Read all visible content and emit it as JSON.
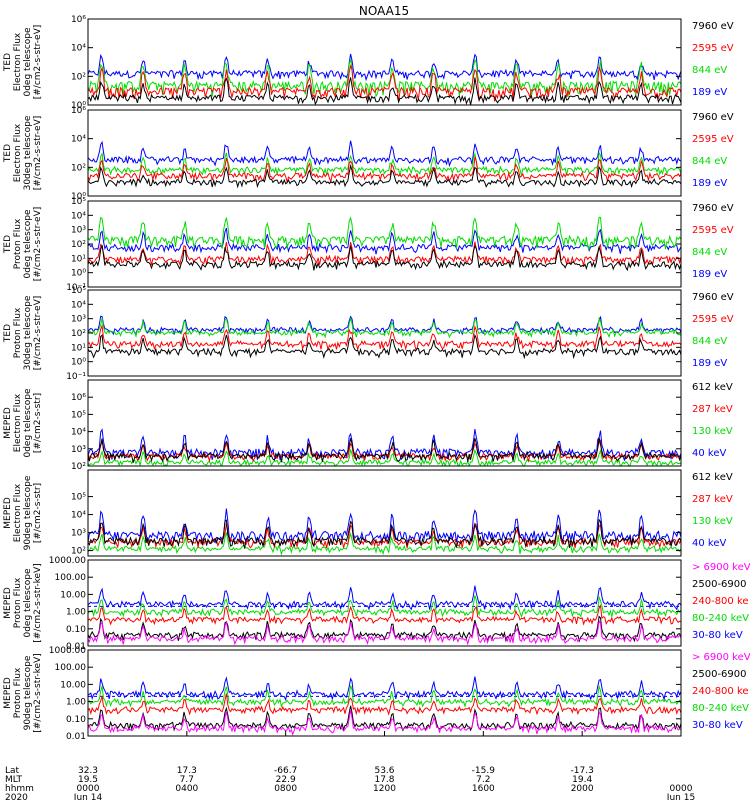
{
  "title": "NOAA15",
  "colors": {
    "black": "#000000",
    "red": "#ff0000",
    "green": "#00dd00",
    "blue": "#0000ff",
    "magenta": "#ff00ff",
    "dashed": "#0000ff"
  },
  "chart_data": [
    {
      "type": "line",
      "ylabel": [
        "TED",
        "Electron Flux",
        "0deg telescope",
        "[#/cm2-s-str-eV]"
      ],
      "y_scale": "log",
      "ylim": [
        1,
        1000000
      ],
      "y_ticks": [
        {
          "v": 1,
          "label": "10⁰"
        },
        {
          "v": 100,
          "label": "10²"
        },
        {
          "v": 10000,
          "label": "10⁴"
        },
        {
          "v": 1000000,
          "label": "10⁶"
        }
      ],
      "series": [
        {
          "name": "7960 eV",
          "color": "black",
          "base": 1.5,
          "top": 8
        },
        {
          "name": "2595 eV",
          "color": "red",
          "base": 2.5,
          "top": 30
        },
        {
          "name": "844 eV",
          "color": "green",
          "base": 5,
          "top": 80
        },
        {
          "name": "189 eV",
          "color": "blue",
          "base": 80,
          "top": 400
        }
      ],
      "dashed_line": null
    },
    {
      "type": "line",
      "ylabel": [
        "TED",
        "Electron Flux",
        "30deg telescope",
        "[#/cm2-s-str-eV]"
      ],
      "y_scale": "log",
      "ylim": [
        1,
        1000000
      ],
      "y_ticks": [
        {
          "v": 1,
          "label": "10⁰"
        },
        {
          "v": 100,
          "label": "10²"
        },
        {
          "v": 10000,
          "label": "10⁴"
        },
        {
          "v": 1000000,
          "label": "10⁶"
        }
      ],
      "series": [
        {
          "name": "7960 eV",
          "color": "black",
          "base": 6,
          "top": 20
        },
        {
          "name": "2595 eV",
          "color": "red",
          "base": 15,
          "top": 60
        },
        {
          "name": "844 eV",
          "color": "green",
          "base": 40,
          "top": 150
        },
        {
          "name": "189 eV",
          "color": "blue",
          "base": 200,
          "top": 800
        }
      ],
      "dashed_line": null
    },
    {
      "type": "line",
      "ylabel": [
        "TED",
        "Proton Flux",
        "0deg telescope",
        "[#/cm2-s-str-eV]"
      ],
      "y_scale": "log",
      "ylim": [
        0.1,
        100000
      ],
      "y_ticks": [
        {
          "v": 0.1,
          "label": "10⁻¹"
        },
        {
          "v": 1,
          "label": "10⁰"
        },
        {
          "v": 10,
          "label": "10¹"
        },
        {
          "v": 100,
          "label": "10²"
        },
        {
          "v": 1000,
          "label": "10³"
        },
        {
          "v": 10000,
          "label": "10⁴"
        },
        {
          "v": 100000,
          "label": "10⁵"
        }
      ],
      "series": [
        {
          "name": "7960 eV",
          "color": "black",
          "base": 2,
          "top": 10
        },
        {
          "name": "2595 eV",
          "color": "red",
          "base": 5,
          "top": 20
        },
        {
          "name": "844 eV",
          "color": "green",
          "base": 60,
          "top": 600
        },
        {
          "name": "189 eV",
          "color": "blue",
          "base": 30,
          "top": 150
        }
      ],
      "dashed_line": null
    },
    {
      "type": "line",
      "ylabel": [
        "TED",
        "Proton Flux",
        "30deg telescope",
        "[#/cm2-s-str-eV]"
      ],
      "y_scale": "log",
      "ylim": [
        0.1,
        100000
      ],
      "y_ticks": [
        {
          "v": 0.1,
          "label": "10⁻¹"
        },
        {
          "v": 1,
          "label": "10⁰"
        },
        {
          "v": 10,
          "label": "10¹"
        },
        {
          "v": 100,
          "label": "10²"
        },
        {
          "v": 1000,
          "label": "10³"
        },
        {
          "v": 10000,
          "label": "10⁴"
        },
        {
          "v": 100000,
          "label": "10⁵"
        }
      ],
      "series": [
        {
          "name": "7960 eV",
          "color": "black",
          "base": 3,
          "top": 12
        },
        {
          "name": "2595 eV",
          "color": "red",
          "base": 10,
          "top": 40
        },
        {
          "name": "844 eV",
          "color": "green",
          "base": 80,
          "top": 200
        },
        {
          "name": "189 eV",
          "color": "blue",
          "base": 120,
          "top": 300
        }
      ],
      "dashed_line": null
    },
    {
      "type": "line",
      "ylabel": [
        "MEPED",
        "Electron Flux",
        "0deg telescope",
        "[#/cm2-s-str]"
      ],
      "y_scale": "log",
      "ylim": [
        100,
        10000000
      ],
      "y_ticks": [
        {
          "v": 100,
          "label": "10²"
        },
        {
          "v": 1000,
          "label": "10³"
        },
        {
          "v": 10000,
          "label": "10⁴"
        },
        {
          "v": 100000,
          "label": "10⁵"
        },
        {
          "v": 1000000,
          "label": "10⁶"
        }
      ],
      "series": [
        {
          "name": "612 keV",
          "color": "black",
          "base": 250,
          "top": 800
        },
        {
          "name": "287 keV",
          "color": "red",
          "base": 300,
          "top": 600
        },
        {
          "name": "130 keV",
          "color": "green",
          "base": 150,
          "top": 200
        },
        {
          "name": "40 keV",
          "color": "blue",
          "base": 300,
          "top": 1500
        }
      ],
      "dashed_line": null
    },
    {
      "type": "line",
      "ylabel": [
        "MEPED",
        "Electron Flux",
        "90deg telescope",
        "[#/cm2-s-str]"
      ],
      "y_scale": "log",
      "ylim": [
        50,
        3000000
      ],
      "y_ticks": [
        {
          "v": 100,
          "label": "10²"
        },
        {
          "v": 1000,
          "label": "10³"
        },
        {
          "v": 10000,
          "label": "10⁴"
        },
        {
          "v": 100000,
          "label": "10⁵"
        }
      ],
      "series": [
        {
          "name": "612 keV",
          "color": "black",
          "base": 200,
          "top": 800
        },
        {
          "name": "287 keV",
          "color": "red",
          "base": 200,
          "top": 600
        },
        {
          "name": "130 keV",
          "color": "green",
          "base": 100,
          "top": 200
        },
        {
          "name": "40 keV",
          "color": "blue",
          "base": 300,
          "top": 2000
        }
      ],
      "dashed_line": null
    },
    {
      "type": "line",
      "ylabel": [
        "MEPED",
        "Proton Flux",
        "0deg telescope",
        "[#/cm2-s-str-keV]"
      ],
      "y_scale": "log",
      "ylim": [
        0.01,
        1000
      ],
      "y_ticks": [
        {
          "v": 0.01,
          "label": "0.01"
        },
        {
          "v": 0.1,
          "label": "0.10"
        },
        {
          "v": 1,
          "label": "1.00"
        },
        {
          "v": 10,
          "label": "10.00"
        },
        {
          "v": 100,
          "label": "100.00"
        },
        {
          "v": 1000,
          "label": "1000.00"
        }
      ],
      "series": [
        {
          "name": "> 6900 keV",
          "color": "magenta",
          "base": 0.02,
          "top": 0.05
        },
        {
          "name": "2500-6900",
          "color": "black",
          "base": 0.03,
          "top": 0.08
        },
        {
          "name": "240-800 ke",
          "color": "red",
          "base": 0.3,
          "top": 0.5
        },
        {
          "name": "80-240 keV",
          "color": "green",
          "base": 0.8,
          "top": 1.5
        },
        {
          "name": "30-80 keV",
          "color": "blue",
          "base": 2,
          "top": 5
        }
      ],
      "dashed_line": 2
    },
    {
      "type": "line",
      "ylabel": [
        "MEPED",
        "Proton Flux",
        "90deg telescope",
        "[#/cm2-s-str-keV]"
      ],
      "y_scale": "log",
      "ylim": [
        0.01,
        1000
      ],
      "y_ticks": [
        {
          "v": 0.01,
          "label": "0.01"
        },
        {
          "v": 0.1,
          "label": "0.10"
        },
        {
          "v": 1,
          "label": "1.00"
        },
        {
          "v": 10,
          "label": "10.00"
        },
        {
          "v": 100,
          "label": "100.00"
        },
        {
          "v": 1000,
          "label": "1000.00"
        }
      ],
      "series": [
        {
          "name": "> 6900 keV",
          "color": "magenta",
          "base": 0.02,
          "top": 0.05
        },
        {
          "name": "2500-6900",
          "color": "black",
          "base": 0.03,
          "top": 0.08
        },
        {
          "name": "240-800 ke",
          "color": "red",
          "base": 0.3,
          "top": 0.5
        },
        {
          "name": "80-240 keV",
          "color": "green",
          "base": 0.8,
          "top": 1.5
        },
        {
          "name": "30-80 keV",
          "color": "blue",
          "base": 2,
          "top": 5
        }
      ],
      "dashed_line": 2
    }
  ],
  "x_axis": {
    "xlim_hours": [
      0,
      24
    ],
    "row_labels": [
      "Lat",
      "MLT",
      "hhmm",
      "2020"
    ],
    "ticks": [
      {
        "hour": 0,
        "lat": "32.3",
        "mlt": "19.5",
        "hhmm": "0000",
        "date": "Jun 14"
      },
      {
        "hour": 4,
        "lat": "17.3",
        "mlt": "7.7",
        "hhmm": "0400",
        "date": ""
      },
      {
        "hour": 8,
        "lat": "-66.7",
        "mlt": "22.9",
        "hhmm": "0800",
        "date": ""
      },
      {
        "hour": 12,
        "lat": "53.6",
        "mlt": "17.8",
        "hhmm": "1200",
        "date": ""
      },
      {
        "hour": 16,
        "lat": "-15.9",
        "mlt": "7.2",
        "hhmm": "1600",
        "date": ""
      },
      {
        "hour": 20,
        "lat": "-17.3",
        "mlt": "19.4",
        "hhmm": "2000",
        "date": ""
      },
      {
        "hour": 24,
        "lat": "",
        "mlt": "",
        "hhmm": "0000",
        "date": "Jun 15"
      }
    ]
  }
}
